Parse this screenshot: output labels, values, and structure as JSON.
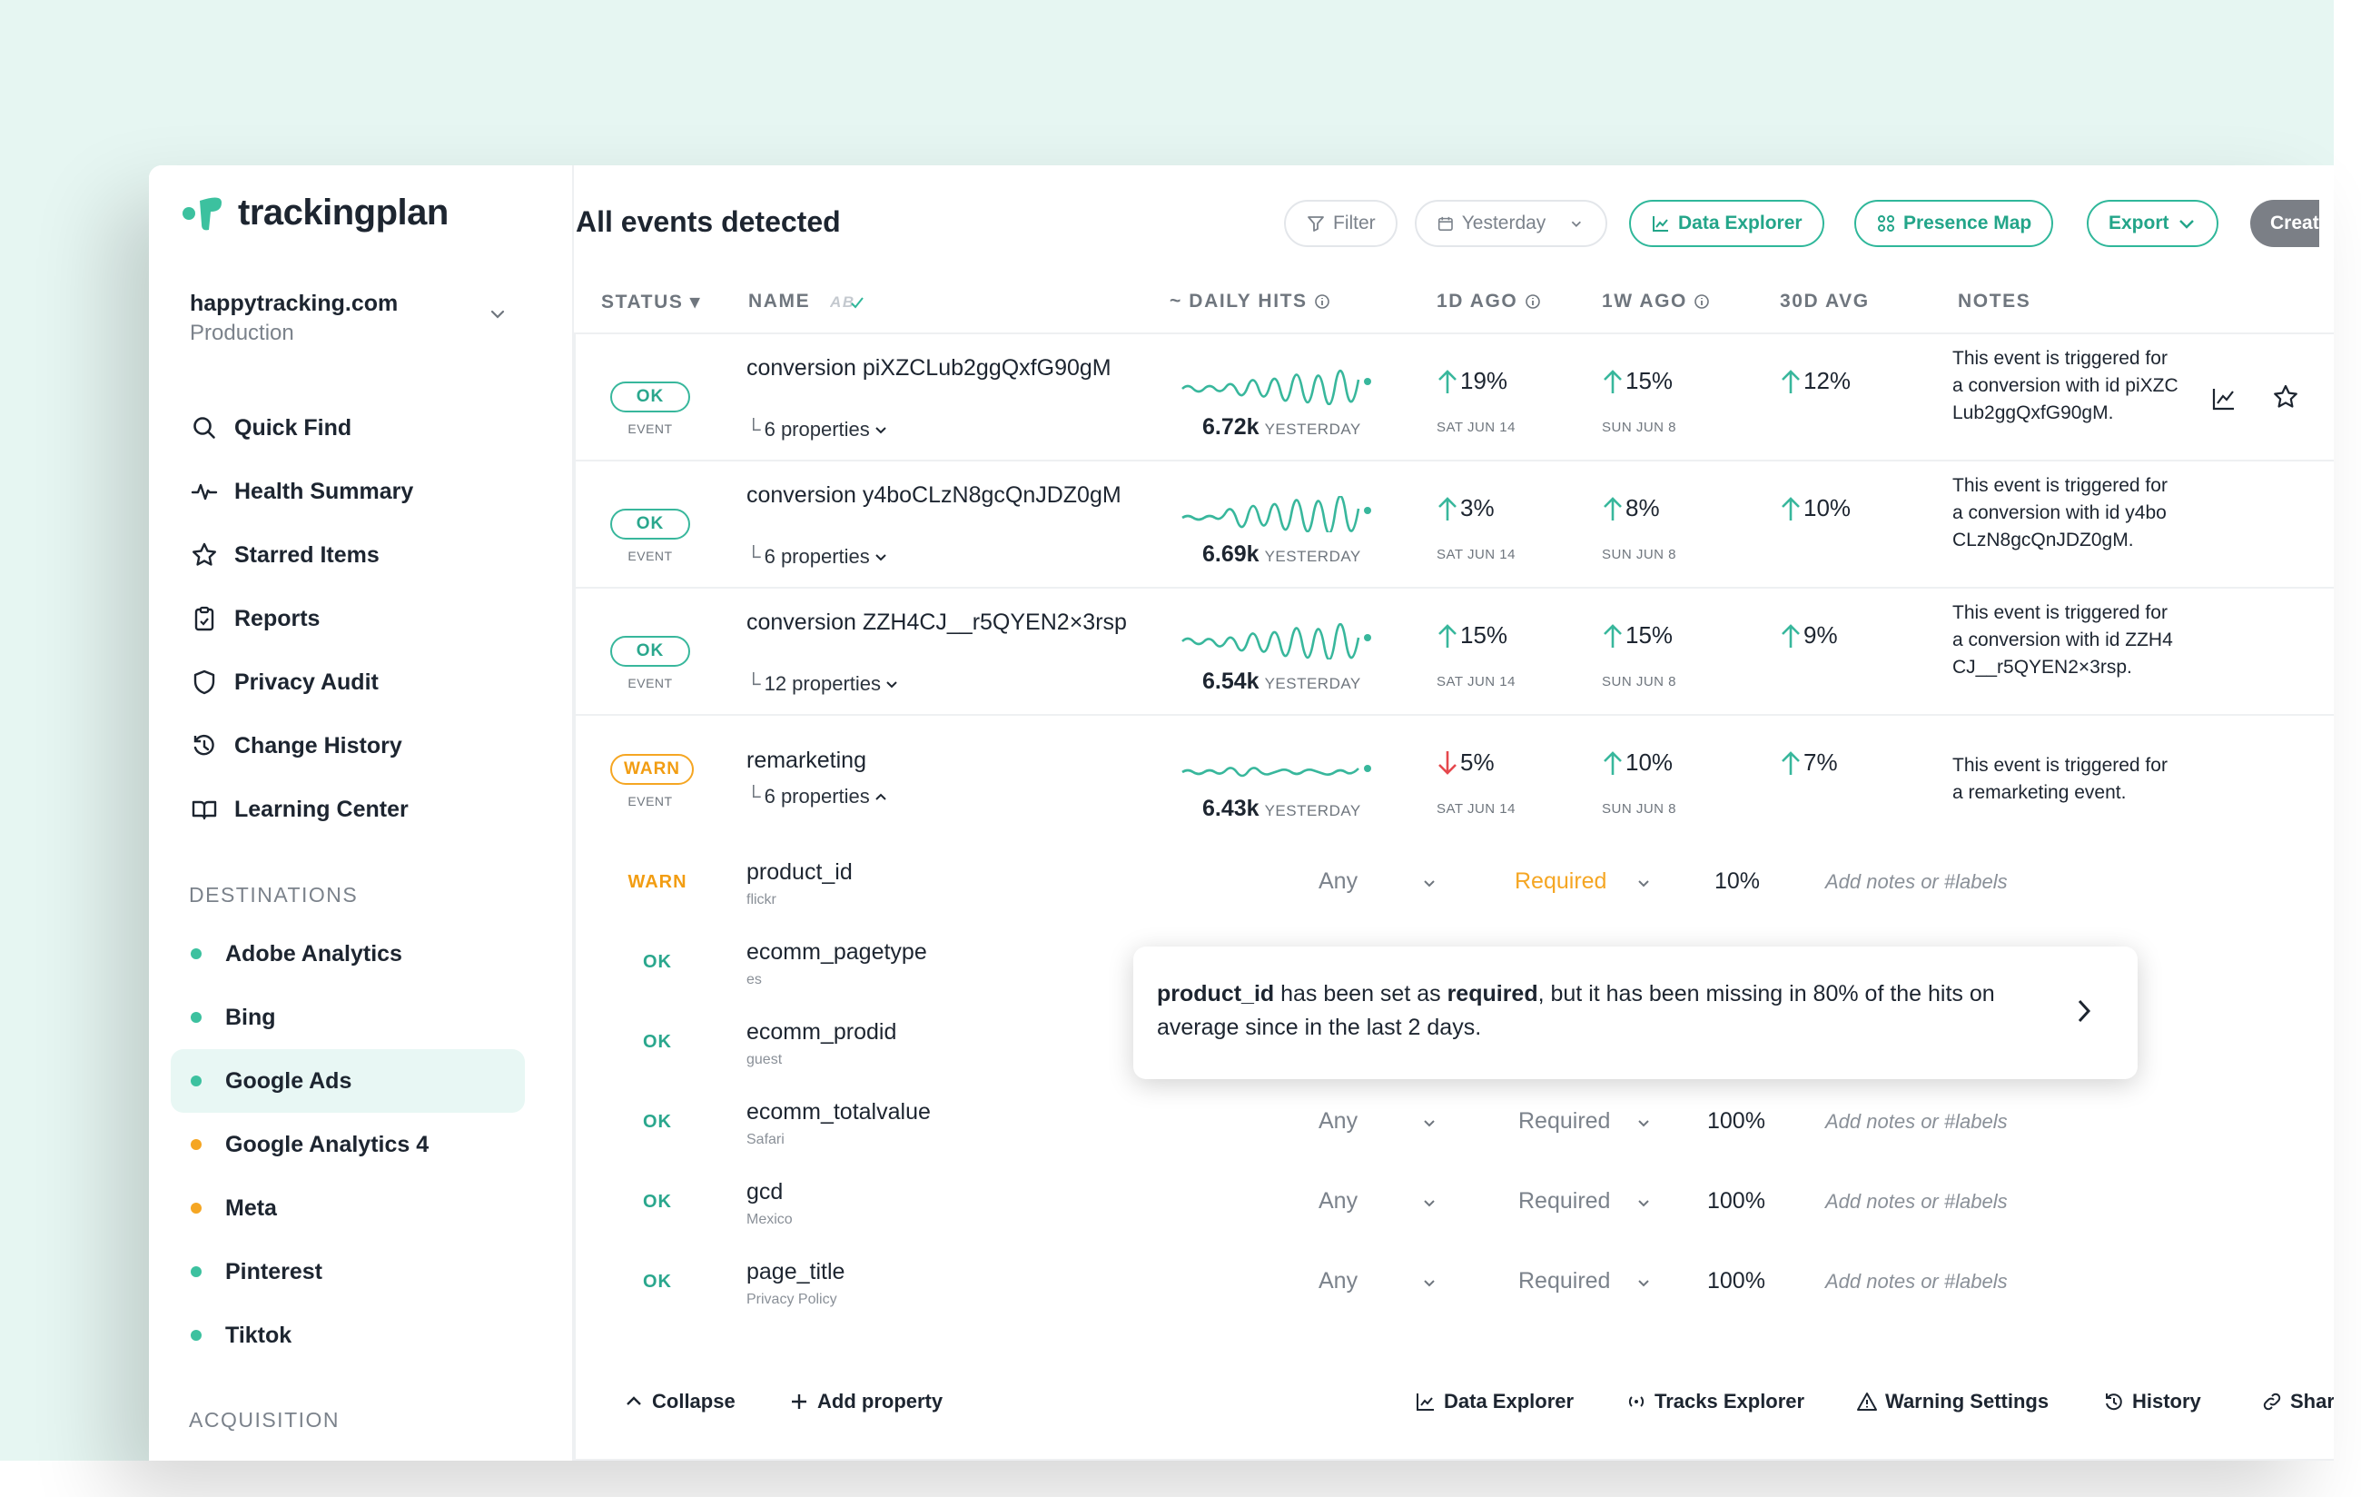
{
  "brand": {
    "name": "trackingplan",
    "accent": "#2fb79a"
  },
  "site": {
    "name": "happytracking.com",
    "env": "Production"
  },
  "nav": [
    {
      "label": "Quick Find",
      "icon": "search-icon"
    },
    {
      "label": "Health Summary",
      "icon": "pulse-icon"
    },
    {
      "label": "Starred Items",
      "icon": "star-icon"
    },
    {
      "label": "Reports",
      "icon": "clipboard-icon"
    },
    {
      "label": "Privacy Audit",
      "icon": "shield-icon"
    },
    {
      "label": "Change History",
      "icon": "history-icon"
    },
    {
      "label": "Learning Center",
      "icon": "book-icon"
    }
  ],
  "destinations_title": "DESTINATIONS",
  "destinations": [
    {
      "label": "Adobe Analytics",
      "color": "#3cc19f"
    },
    {
      "label": "Bing",
      "color": "#3cc19f"
    },
    {
      "label": "Google Ads",
      "color": "#3cc19f"
    },
    {
      "label": "Google Analytics 4",
      "color": "#f5a623"
    },
    {
      "label": "Meta",
      "color": "#f5a623"
    },
    {
      "label": "Pinterest",
      "color": "#3cc19f"
    },
    {
      "label": "Tiktok",
      "color": "#3cc19f"
    }
  ],
  "acquisition_title": "ACQUISITION",
  "header": {
    "title": "All events detected",
    "filter": "Filter",
    "date": "Yesterday",
    "data_explorer": "Data Explorer",
    "presence_map": "Presence Map",
    "export": "Export",
    "create": "Creat"
  },
  "columns": {
    "status": "STATUS",
    "name": "NAME",
    "daily_hits": "~ DAILY HITS",
    "d1": "1D AGO",
    "w1": "1W AGO",
    "avg": "30D AVG",
    "notes": "NOTES"
  },
  "events": [
    {
      "status": "OK",
      "type": "EVENT",
      "name": "conversion piXZCLub2ggQxfG90gM",
      "props": "6 properties",
      "hits": "6.72k",
      "hits_label": "YESTERDAY",
      "d1": "19%",
      "d1_dir": "up",
      "d1_date": "SAT JUN 14",
      "w1": "15%",
      "w1_date": "SUN JUN 8",
      "avg": "12%",
      "note": "This event is triggered for a conversion with id piXZCLub2ggQxfG90gM."
    },
    {
      "status": "OK",
      "type": "EVENT",
      "name": "conversion y4boCLzN8gcQnJDZ0gM",
      "props": "6 properties",
      "hits": "6.69k",
      "hits_label": "YESTERDAY",
      "d1": "3%",
      "d1_dir": "up",
      "d1_date": "SAT JUN 14",
      "w1": "8%",
      "w1_date": "SUN JUN 8",
      "avg": "10%",
      "note": "This event is triggered for a conversion with id y4boCLzN8gcQnJDZ0gM."
    },
    {
      "status": "OK",
      "type": "EVENT",
      "name": "conversion ZZH4CJ__r5QYEN2×3rsp",
      "props": "12 properties",
      "hits": "6.54k",
      "hits_label": "YESTERDAY",
      "d1": "15%",
      "d1_dir": "up",
      "d1_date": "SAT JUN 14",
      "w1": "15%",
      "w1_date": "SUN JUN 8",
      "avg": "9%",
      "note": "This event is triggered for a conversion with id ZZH4CJ__r5QYEN2×3rsp."
    },
    {
      "status": "WARN",
      "type": "EVENT",
      "name": "remarketing",
      "props": "6 properties",
      "hits": "6.43k",
      "hits_label": "YESTERDAY",
      "d1": "5%",
      "d1_dir": "down",
      "d1_date": "SAT JUN 14",
      "w1": "10%",
      "w1_date": "SUN JUN 8",
      "avg": "7%",
      "note": "This event is triggered for a remarketing event."
    }
  ],
  "properties": [
    {
      "status": "WARN",
      "name": "product_id",
      "value": "flickr",
      "type": "Any",
      "req": "Required",
      "pct": "10%",
      "note": "Add notes or #labels",
      "highlight": true
    },
    {
      "status": "OK",
      "name": "ecomm_pagetype",
      "value": "es"
    },
    {
      "status": "OK",
      "name": "ecomm_prodid",
      "value": "guest"
    },
    {
      "status": "OK",
      "name": "ecomm_totalvalue",
      "value": "Safari",
      "type": "Any",
      "req": "Required",
      "pct": "100%",
      "note": "Add notes or #labels"
    },
    {
      "status": "OK",
      "name": "gcd",
      "value": "Mexico",
      "type": "Any",
      "req": "Required",
      "pct": "100%",
      "note": "Add notes or #labels"
    },
    {
      "status": "OK",
      "name": "page_title",
      "value": "Privacy Policy",
      "type": "Any",
      "req": "Required",
      "pct": "100%",
      "note": "Add notes or #labels"
    }
  ],
  "tooltip": {
    "p1": "product_id",
    "p2": " has been set as ",
    "p3": "required",
    "p4": ", but it has been missing in 80% of the hits on average since in the last 2 days."
  },
  "footer": {
    "collapse": "Collapse",
    "add_property": "Add property",
    "data_explorer": "Data Explorer",
    "tracks_explorer": "Tracks Explorer",
    "warning_settings": "Warning Settings",
    "history": "History",
    "share": "Shar"
  }
}
